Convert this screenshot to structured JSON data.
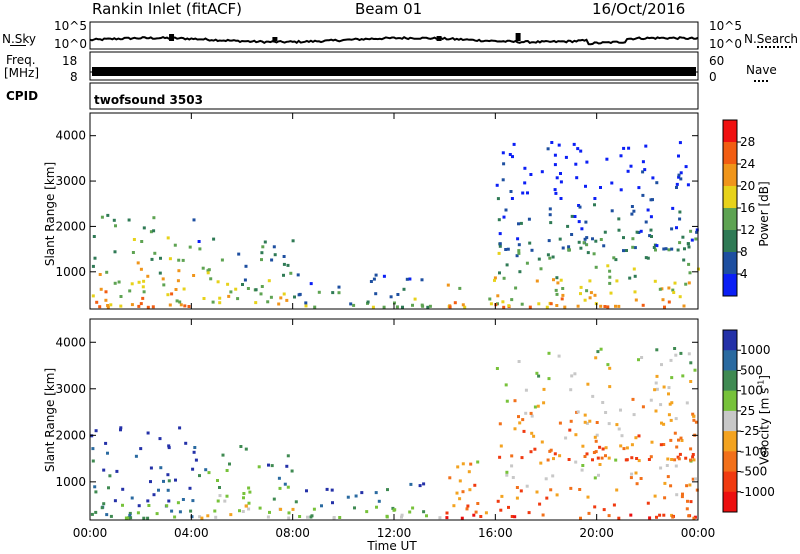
{
  "header": {
    "station": "Rankin Inlet (fitACF)",
    "beam": "Beam 01",
    "date": "16/Oct/2016"
  },
  "noise_panel": {
    "left_label": "N.Sky",
    "right_label": "N.Search",
    "left_ticks": [
      "10^5",
      "10^0"
    ],
    "right_ticks": [
      "10^5",
      "10^0"
    ]
  },
  "freq_panel": {
    "left_label_line1": "Freq.",
    "left_label_line2": "[MHz]",
    "left_ticks": [
      "18",
      "8"
    ],
    "right_label": "Nave",
    "right_ticks": [
      "60",
      "0"
    ]
  },
  "cpid_panel": {
    "label": "CPID",
    "program": "twofsound 3503"
  },
  "colors": {
    "power_scale": [
      "#0b1ff5",
      "#1e4fa0",
      "#2f7a55",
      "#5ea352",
      "#e7d21a",
      "#f0951a",
      "#f25d12",
      "#f01010"
    ],
    "velocity_scale": [
      "#2431a8",
      "#2a6aa0",
      "#3f8a52",
      "#77c23a",
      "#c8c8c8",
      "#f3a320",
      "#f2701a",
      "#f03a10",
      "#ec0f0f"
    ]
  },
  "chart_data": [
    {
      "type": "heatmap",
      "title": "",
      "xlabel": "Time UT",
      "ylabel": "Slant Range [km]",
      "x_tick_labels": [
        "00:00",
        "04:00",
        "08:00",
        "12:00",
        "16:00",
        "20:00",
        "00:00"
      ],
      "x_range_hours": [
        0,
        24
      ],
      "y_ticks": [
        1000,
        2000,
        3000,
        4000
      ],
      "ylim": [
        180,
        4500
      ],
      "colorbar": {
        "label": "Power [dB]",
        "tick_labels": [
          "4",
          "8",
          "12",
          "16",
          "20",
          "24",
          "28"
        ],
        "range": [
          0,
          30
        ]
      },
      "regions": [
        {
          "t0": 0.0,
          "t1": 4.2,
          "r0": 250,
          "r1": 2300,
          "level": 5
        },
        {
          "t0": 4.2,
          "t1": 8.0,
          "r0": 250,
          "r1": 1800,
          "level": 4
        },
        {
          "t0": 8.0,
          "t1": 14.0,
          "r0": 250,
          "r1": 1000,
          "level": 3
        },
        {
          "t0": 14.0,
          "t1": 24.0,
          "r0": 250,
          "r1": 1500,
          "level": 5
        },
        {
          "t0": 16.0,
          "t1": 24.0,
          "r0": 1500,
          "r1": 3900,
          "level": 2
        }
      ]
    },
    {
      "type": "heatmap",
      "title": "",
      "xlabel": "Time UT",
      "ylabel": "Slant Range [km]",
      "x_tick_labels": [
        "00:00",
        "04:00",
        "08:00",
        "12:00",
        "16:00",
        "20:00",
        "00:00"
      ],
      "x_range_hours": [
        0,
        24
      ],
      "y_ticks": [
        1000,
        2000,
        3000,
        4000
      ],
      "ylim": [
        180,
        4500
      ],
      "colorbar": {
        "label": "Velocity [m s^-1]",
        "tick_labels": [
          "1000",
          "500",
          "100",
          "25",
          "-25",
          "-100",
          "-500",
          "-1000"
        ],
        "range": [
          -1000,
          1000
        ]
      },
      "regions": [
        {
          "t0": 0.0,
          "t1": 4.2,
          "r0": 250,
          "r1": 2300,
          "level": 2
        },
        {
          "t0": 4.2,
          "t1": 8.0,
          "r0": 250,
          "r1": 1800,
          "level": 4
        },
        {
          "t0": 8.0,
          "t1": 14.0,
          "r0": 250,
          "r1": 1000,
          "level": 3
        },
        {
          "t0": 14.0,
          "t1": 24.0,
          "r0": 250,
          "r1": 1500,
          "level": 7
        },
        {
          "t0": 16.0,
          "t1": 24.0,
          "r0": 1500,
          "r1": 3900,
          "level": 6
        }
      ]
    }
  ]
}
